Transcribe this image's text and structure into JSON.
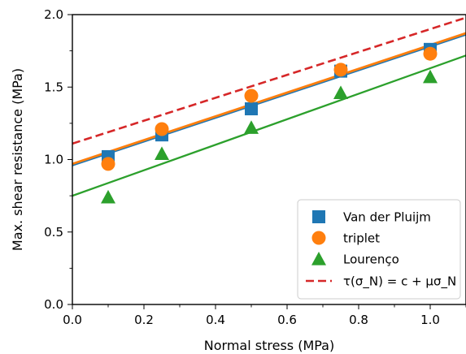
{
  "chart_data": {
    "type": "scatter",
    "xlabel": "Normal stress (MPa)",
    "ylabel": "Max. shear resistance (MPa)",
    "xlim": [
      0.0,
      1.1
    ],
    "ylim": [
      0.0,
      2.0
    ],
    "xticks": [
      "0.0",
      "0.2",
      "0.4",
      "0.6",
      "0.8",
      "1.0"
    ],
    "xtick_values": [
      0.0,
      0.2,
      0.4,
      0.6,
      0.8,
      1.0
    ],
    "yticks": [
      "0.0",
      "0.5",
      "1.0",
      "1.5",
      "2.0"
    ],
    "ytick_values": [
      0.0,
      0.5,
      1.0,
      1.5,
      2.0
    ],
    "grid": false,
    "legend_position": "lower-right",
    "series": [
      {
        "name": "Van der Pluijm",
        "marker": "square",
        "color": "#1f77b4",
        "x": [
          0.1,
          0.25,
          0.5,
          0.75,
          1.0
        ],
        "y": [
          1.02,
          1.17,
          1.35,
          1.61,
          1.76
        ],
        "fit": {
          "intercept": 0.96,
          "slope": 0.82
        }
      },
      {
        "name": "triplet",
        "marker": "circle",
        "color": "#ff7f0e",
        "x": [
          0.1,
          0.25,
          0.5,
          0.75,
          1.0
        ],
        "y": [
          0.97,
          1.21,
          1.44,
          1.62,
          1.73
        ],
        "fit": {
          "intercept": 0.97,
          "slope": 0.82
        }
      },
      {
        "name": "Lourenço",
        "marker": "triangle",
        "color": "#2ca02c",
        "x": [
          0.1,
          0.25,
          0.5,
          0.75,
          1.0
        ],
        "y": [
          0.74,
          1.04,
          1.22,
          1.46,
          1.57
        ],
        "fit": {
          "intercept": 0.75,
          "slope": 0.88
        }
      }
    ],
    "reference_line": {
      "name": "τ(σ_N) = c + μσ_N",
      "style": "dashed",
      "color": "#d62728",
      "intercept": 1.11,
      "slope": 0.79
    }
  }
}
